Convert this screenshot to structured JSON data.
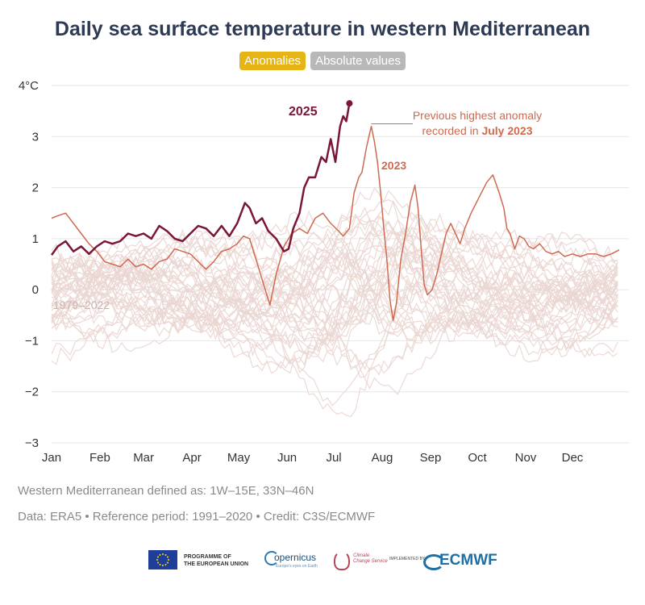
{
  "title": "Daily sea surface temperature in western Mediterranean",
  "toggles": {
    "anomalies": "Anomalies",
    "absolute": "Absolute values"
  },
  "chart_data": {
    "type": "line",
    "ylim": [
      -3,
      4
    ],
    "y_ticks": [
      {
        "value": 4,
        "label": "4°C"
      },
      {
        "value": 3,
        "label": "3"
      },
      {
        "value": 2,
        "label": "2"
      },
      {
        "value": 1,
        "label": "1"
      },
      {
        "value": 0,
        "label": "0"
      },
      {
        "value": -1,
        "label": "−1"
      },
      {
        "value": -2,
        "label": "−2"
      },
      {
        "value": -3,
        "label": "−3"
      }
    ],
    "x_ticks": [
      "Jan",
      "Feb",
      "Mar",
      "Apr",
      "May",
      "Jun",
      "Jul",
      "Aug",
      "Sep",
      "Oct",
      "Nov",
      "Dec"
    ],
    "grid": true,
    "colors": {
      "y2025": "#7a1636",
      "y2023": "#cf6a50",
      "historical": "#ead6d1",
      "grid": "#e6e6e6",
      "axis_text": "#333333"
    },
    "annotations": {
      "label_2025": "2025",
      "label_2023": "2023",
      "label_range": "1979–2022",
      "note_line1": "Previous highest anomaly",
      "note_line2_prefix": "recorded in ",
      "note_line2_bold": "July 2023"
    },
    "series": [
      {
        "name": "2025",
        "points": [
          [
            1,
            0.68
          ],
          [
            5,
            0.85
          ],
          [
            10,
            0.95
          ],
          [
            15,
            0.75
          ],
          [
            20,
            0.85
          ],
          [
            25,
            0.7
          ],
          [
            30,
            0.85
          ],
          [
            35,
            0.95
          ],
          [
            40,
            0.9
          ],
          [
            45,
            0.95
          ],
          [
            50,
            1.1
          ],
          [
            55,
            1.05
          ],
          [
            60,
            1.1
          ],
          [
            65,
            1.0
          ],
          [
            70,
            1.25
          ],
          [
            75,
            1.15
          ],
          [
            80,
            1.0
          ],
          [
            85,
            0.95
          ],
          [
            90,
            1.1
          ],
          [
            95,
            1.25
          ],
          [
            100,
            1.2
          ],
          [
            105,
            1.05
          ],
          [
            110,
            1.25
          ],
          [
            115,
            1.05
          ],
          [
            120,
            1.3
          ],
          [
            125,
            1.7
          ],
          [
            128,
            1.6
          ],
          [
            132,
            1.3
          ],
          [
            136,
            1.4
          ],
          [
            140,
            1.15
          ],
          [
            145,
            1.0
          ],
          [
            150,
            0.75
          ],
          [
            153,
            0.8
          ],
          [
            156,
            1.2
          ],
          [
            160,
            1.5
          ],
          [
            163,
            2.0
          ],
          [
            166,
            2.2
          ],
          [
            170,
            2.2
          ],
          [
            174,
            2.6
          ],
          [
            177,
            2.5
          ],
          [
            180,
            2.95
          ],
          [
            183,
            2.5
          ],
          [
            186,
            3.2
          ],
          [
            188,
            3.4
          ],
          [
            190,
            3.3
          ],
          [
            192,
            3.65
          ]
        ]
      },
      {
        "name": "2023",
        "points": [
          [
            1,
            1.4
          ],
          [
            5,
            1.45
          ],
          [
            10,
            1.5
          ],
          [
            15,
            1.3
          ],
          [
            20,
            1.1
          ],
          [
            25,
            0.9
          ],
          [
            30,
            0.75
          ],
          [
            35,
            0.55
          ],
          [
            40,
            0.5
          ],
          [
            45,
            0.45
          ],
          [
            50,
            0.6
          ],
          [
            55,
            0.45
          ],
          [
            60,
            0.5
          ],
          [
            65,
            0.4
          ],
          [
            70,
            0.55
          ],
          [
            75,
            0.6
          ],
          [
            80,
            0.8
          ],
          [
            85,
            0.75
          ],
          [
            90,
            0.7
          ],
          [
            95,
            0.55
          ],
          [
            100,
            0.4
          ],
          [
            105,
            0.55
          ],
          [
            110,
            0.75
          ],
          [
            115,
            0.8
          ],
          [
            120,
            0.9
          ],
          [
            124,
            1.05
          ],
          [
            128,
            1.0
          ],
          [
            132,
            0.6
          ],
          [
            135,
            0.3
          ],
          [
            138,
            0.0
          ],
          [
            141,
            -0.3
          ],
          [
            145,
            0.3
          ],
          [
            150,
            0.85
          ],
          [
            155,
            1.1
          ],
          [
            160,
            1.2
          ],
          [
            165,
            1.1
          ],
          [
            170,
            1.4
          ],
          [
            175,
            1.5
          ],
          [
            180,
            1.3
          ],
          [
            185,
            1.15
          ],
          [
            188,
            1.05
          ],
          [
            192,
            1.2
          ],
          [
            195,
            1.9
          ],
          [
            198,
            2.2
          ],
          [
            200,
            2.3
          ],
          [
            203,
            2.8
          ],
          [
            206,
            3.2
          ],
          [
            208,
            2.9
          ],
          [
            210,
            2.5
          ],
          [
            212,
            1.9
          ],
          [
            214,
            1.2
          ],
          [
            216,
            0.6
          ],
          [
            218,
            -0.2
          ],
          [
            220,
            -0.6
          ],
          [
            222,
            -0.3
          ],
          [
            225,
            0.6
          ],
          [
            228,
            1.1
          ],
          [
            231,
            1.7
          ],
          [
            234,
            2.05
          ],
          [
            236,
            1.6
          ],
          [
            238,
            0.8
          ],
          [
            240,
            0.1
          ],
          [
            242,
            -0.1
          ],
          [
            245,
            0.0
          ],
          [
            248,
            0.3
          ],
          [
            251,
            0.7
          ],
          [
            254,
            1.1
          ],
          [
            257,
            1.3
          ],
          [
            260,
            1.1
          ],
          [
            263,
            0.9
          ],
          [
            266,
            1.2
          ],
          [
            270,
            1.5
          ],
          [
            275,
            1.8
          ],
          [
            280,
            2.1
          ],
          [
            284,
            2.25
          ],
          [
            288,
            1.9
          ],
          [
            291,
            1.6
          ],
          [
            293,
            1.2
          ],
          [
            295,
            1.1
          ],
          [
            298,
            0.8
          ],
          [
            301,
            1.05
          ],
          [
            304,
            1.0
          ],
          [
            307,
            0.85
          ],
          [
            310,
            0.8
          ],
          [
            314,
            0.9
          ],
          [
            318,
            0.75
          ],
          [
            322,
            0.7
          ],
          [
            326,
            0.75
          ],
          [
            330,
            0.65
          ],
          [
            335,
            0.7
          ],
          [
            340,
            0.65
          ],
          [
            345,
            0.7
          ],
          [
            350,
            0.7
          ],
          [
            355,
            0.65
          ],
          [
            360,
            0.7
          ],
          [
            365,
            0.78
          ]
        ]
      }
    ]
  },
  "footnotes": {
    "definition": "Western Mediterranean defined as: 1W–15E, 33N–46N",
    "credits": "Data: ERA5 • Reference period: 1991–2020 • Credit: C3S/ECMWF"
  },
  "logos": {
    "eu_line1": "PROGRAMME OF",
    "eu_line2": "THE EUROPEAN UNION",
    "copernicus": "opernicus",
    "copernicus_tagline": "Europe's eyes on Earth",
    "c3s_line1": "Climate",
    "c3s_line2": "Change Service",
    "implemented_by": "IMPLEMENTED BY",
    "ecmwf": "ECMWF"
  }
}
